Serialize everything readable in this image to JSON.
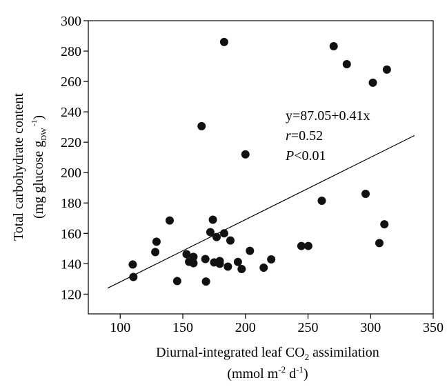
{
  "chart_data": {
    "type": "scatter",
    "x_label": [
      "Diurnal-integrated leaf CO",
      "2",
      " assimilation"
    ],
    "x_label_2": [
      "(mmol m",
      "-2",
      " d",
      "-1",
      ")"
    ],
    "y_label": [
      "Total carbohydrate content"
    ],
    "y_label_2": [
      "(mg glucose g",
      "DW",
      " -1",
      ")"
    ],
    "xlim": [
      74.5,
      350
    ],
    "ylim": [
      107,
      300
    ],
    "xticks": [
      100,
      150,
      200,
      250,
      300,
      350
    ],
    "yticks": [
      120,
      140,
      160,
      180,
      200,
      220,
      240,
      260,
      280,
      300
    ],
    "color": "#111111",
    "x": [
      110,
      110.5,
      128,
      129,
      139.5,
      145.5,
      153,
      155,
      158.5,
      158.5,
      165,
      168,
      168.5,
      172,
      174,
      175,
      177,
      179.5,
      179.5,
      183,
      183,
      186,
      188,
      194,
      197,
      200,
      203.6,
      214.6,
      220.6,
      244.7,
      250.2,
      261,
      270.5,
      281,
      296,
      301.8,
      307,
      311,
      313
    ],
    "values": [
      139.5,
      131.3,
      147.7,
      154.5,
      168.5,
      128.6,
      146.3,
      141.3,
      144.5,
      140.4,
      230.6,
      143.1,
      128.3,
      160.8,
      169,
      140.9,
      157.6,
      140,
      141.8,
      160,
      286,
      138.1,
      155.3,
      141.2,
      136.5,
      212,
      148.5,
      137.4,
      142.9,
      151.7,
      151.7,
      181.5,
      283.2,
      271.4,
      186,
      259.2,
      153.6,
      166,
      267.8
    ],
    "fit": {
      "intercept": 87.05,
      "slope": 0.41,
      "x": [
        90,
        335
      ]
    },
    "annotations": [
      [
        "y=87.05+0.41x"
      ],
      [
        "r",
        "=0.52"
      ],
      [
        "P",
        "<0.01"
      ]
    ]
  }
}
